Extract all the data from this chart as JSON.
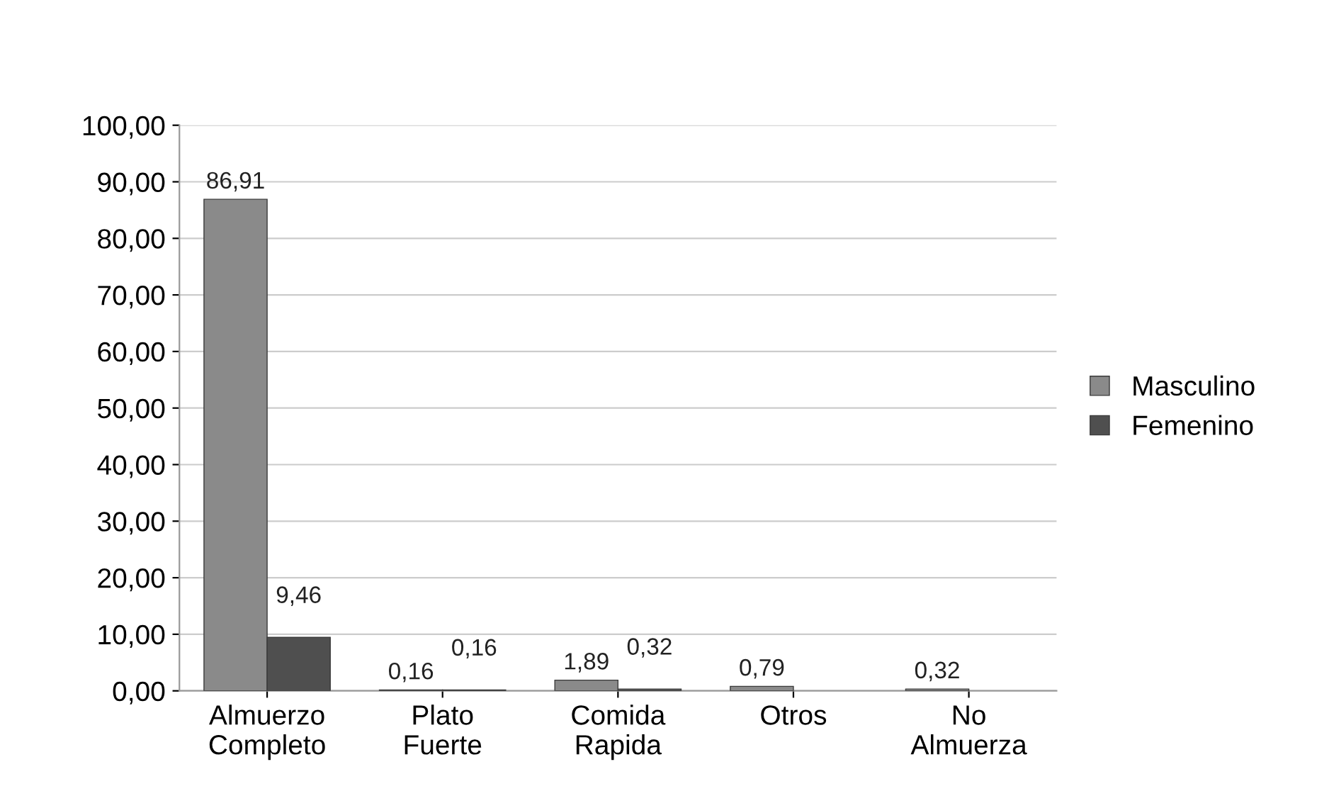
{
  "chart_data": {
    "type": "bar",
    "categories": [
      "Almuerzo\nCompleto",
      "Plato\nFuerte",
      "Comida\nRapida",
      "Otros",
      "No\nAlmuerza"
    ],
    "series": [
      {
        "name": "Masculino",
        "color": "#8a8a8a",
        "values": [
          86.91,
          0.16,
          1.89,
          0.79,
          0.32
        ],
        "value_labels": [
          "86,91",
          "0,16",
          "1,89",
          "0,79",
          "0,32"
        ]
      },
      {
        "name": "Femenino",
        "color": "#4f4f4f",
        "values": [
          9.46,
          0.16,
          0.32,
          null,
          null
        ],
        "value_labels": [
          "9,46",
          "0,16",
          "0,32",
          null,
          null
        ]
      }
    ],
    "ylim": [
      0,
      100
    ],
    "yticks": [
      {
        "value": 0,
        "label": "0,00"
      },
      {
        "value": 10,
        "label": "10,00"
      },
      {
        "value": 20,
        "label": "20,00"
      },
      {
        "value": 30,
        "label": "30,00"
      },
      {
        "value": 40,
        "label": "40,00"
      },
      {
        "value": 50,
        "label": "50,00"
      },
      {
        "value": 60,
        "label": "60,00"
      },
      {
        "value": 70,
        "label": "70,00"
      },
      {
        "value": 80,
        "label": "80,00"
      },
      {
        "value": 90,
        "label": "90,00"
      },
      {
        "value": 100,
        "label": "100,00"
      }
    ],
    "grid": "y",
    "legend": "right"
  }
}
